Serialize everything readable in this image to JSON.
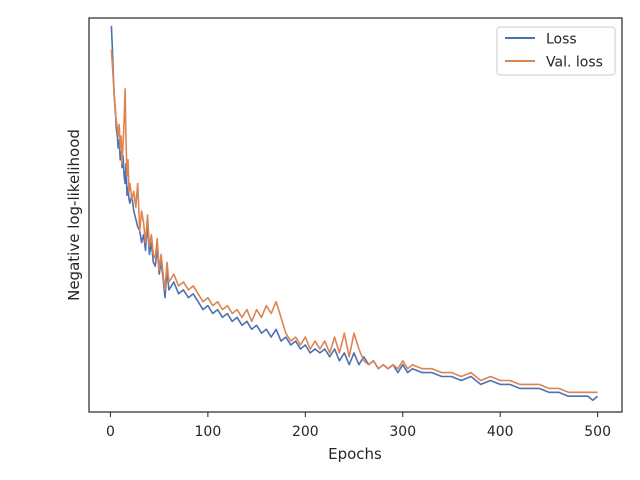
{
  "chart_data": {
    "type": "line",
    "title": "",
    "xlabel": "Epochs",
    "ylabel": "Negative log-likelihood",
    "xlim": [
      -22,
      525
    ],
    "ylim": [
      0.0,
      1.0
    ],
    "xticks": [
      0,
      100,
      200,
      300,
      400,
      500
    ],
    "yticks": [],
    "grid": false,
    "legend": {
      "position": "top-right"
    },
    "series": [
      {
        "name": "Loss",
        "color": "#4c72b0",
        "points": [
          [
            1,
            0.98
          ],
          [
            2,
            0.92
          ],
          [
            3,
            0.85
          ],
          [
            4,
            0.8
          ],
          [
            5,
            0.77
          ],
          [
            6,
            0.72
          ],
          [
            7,
            0.7
          ],
          [
            8,
            0.67
          ],
          [
            9,
            0.69
          ],
          [
            10,
            0.64
          ],
          [
            11,
            0.66
          ],
          [
            12,
            0.62
          ],
          [
            13,
            0.65
          ],
          [
            14,
            0.6
          ],
          [
            15,
            0.58
          ],
          [
            16,
            0.63
          ],
          [
            17,
            0.55
          ],
          [
            18,
            0.57
          ],
          [
            19,
            0.54
          ],
          [
            20,
            0.53
          ],
          [
            22,
            0.55
          ],
          [
            24,
            0.51
          ],
          [
            26,
            0.49
          ],
          [
            28,
            0.47
          ],
          [
            30,
            0.46
          ],
          [
            32,
            0.43
          ],
          [
            34,
            0.45
          ],
          [
            36,
            0.41
          ],
          [
            38,
            0.48
          ],
          [
            40,
            0.4
          ],
          [
            42,
            0.43
          ],
          [
            44,
            0.38
          ],
          [
            46,
            0.37
          ],
          [
            48,
            0.42
          ],
          [
            50,
            0.35
          ],
          [
            52,
            0.38
          ],
          [
            54,
            0.34
          ],
          [
            56,
            0.29
          ],
          [
            58,
            0.36
          ],
          [
            60,
            0.31
          ],
          [
            65,
            0.33
          ],
          [
            70,
            0.3
          ],
          [
            75,
            0.31
          ],
          [
            80,
            0.29
          ],
          [
            85,
            0.3
          ],
          [
            90,
            0.28
          ],
          [
            95,
            0.26
          ],
          [
            100,
            0.27
          ],
          [
            105,
            0.25
          ],
          [
            110,
            0.26
          ],
          [
            115,
            0.24
          ],
          [
            120,
            0.25
          ],
          [
            125,
            0.23
          ],
          [
            130,
            0.24
          ],
          [
            135,
            0.22
          ],
          [
            140,
            0.23
          ],
          [
            145,
            0.21
          ],
          [
            150,
            0.22
          ],
          [
            155,
            0.2
          ],
          [
            160,
            0.21
          ],
          [
            165,
            0.19
          ],
          [
            170,
            0.21
          ],
          [
            175,
            0.18
          ],
          [
            180,
            0.19
          ],
          [
            185,
            0.17
          ],
          [
            190,
            0.18
          ],
          [
            195,
            0.16
          ],
          [
            200,
            0.17
          ],
          [
            205,
            0.15
          ],
          [
            210,
            0.16
          ],
          [
            215,
            0.15
          ],
          [
            220,
            0.16
          ],
          [
            225,
            0.14
          ],
          [
            230,
            0.16
          ],
          [
            235,
            0.13
          ],
          [
            240,
            0.15
          ],
          [
            245,
            0.12
          ],
          [
            250,
            0.15
          ],
          [
            255,
            0.12
          ],
          [
            260,
            0.14
          ],
          [
            265,
            0.12
          ],
          [
            270,
            0.13
          ],
          [
            275,
            0.11
          ],
          [
            280,
            0.12
          ],
          [
            285,
            0.11
          ],
          [
            290,
            0.12
          ],
          [
            295,
            0.1
          ],
          [
            300,
            0.12
          ],
          [
            305,
            0.1
          ],
          [
            310,
            0.11
          ],
          [
            320,
            0.1
          ],
          [
            330,
            0.1
          ],
          [
            340,
            0.09
          ],
          [
            350,
            0.09
          ],
          [
            360,
            0.08
          ],
          [
            370,
            0.09
          ],
          [
            380,
            0.07
          ],
          [
            390,
            0.08
          ],
          [
            400,
            0.07
          ],
          [
            410,
            0.07
          ],
          [
            420,
            0.06
          ],
          [
            430,
            0.06
          ],
          [
            440,
            0.06
          ],
          [
            450,
            0.05
          ],
          [
            460,
            0.05
          ],
          [
            470,
            0.04
          ],
          [
            480,
            0.04
          ],
          [
            490,
            0.04
          ],
          [
            495,
            0.03
          ],
          [
            500,
            0.04
          ]
        ]
      },
      {
        "name": "Val. loss",
        "color": "#dd8452",
        "points": [
          [
            1,
            0.92
          ],
          [
            2,
            0.88
          ],
          [
            3,
            0.84
          ],
          [
            4,
            0.8
          ],
          [
            5,
            0.76
          ],
          [
            6,
            0.74
          ],
          [
            7,
            0.72
          ],
          [
            8,
            0.7
          ],
          [
            9,
            0.73
          ],
          [
            10,
            0.67
          ],
          [
            11,
            0.7
          ],
          [
            12,
            0.63
          ],
          [
            13,
            0.68
          ],
          [
            14,
            0.74
          ],
          [
            15,
            0.82
          ],
          [
            16,
            0.69
          ],
          [
            17,
            0.6
          ],
          [
            18,
            0.64
          ],
          [
            19,
            0.56
          ],
          [
            20,
            0.58
          ],
          [
            22,
            0.54
          ],
          [
            24,
            0.56
          ],
          [
            26,
            0.52
          ],
          [
            28,
            0.58
          ],
          [
            30,
            0.46
          ],
          [
            32,
            0.51
          ],
          [
            34,
            0.48
          ],
          [
            36,
            0.43
          ],
          [
            38,
            0.5
          ],
          [
            40,
            0.42
          ],
          [
            42,
            0.45
          ],
          [
            44,
            0.4
          ],
          [
            46,
            0.39
          ],
          [
            48,
            0.44
          ],
          [
            50,
            0.36
          ],
          [
            52,
            0.4
          ],
          [
            54,
            0.35
          ],
          [
            56,
            0.31
          ],
          [
            58,
            0.38
          ],
          [
            60,
            0.33
          ],
          [
            65,
            0.35
          ],
          [
            70,
            0.32
          ],
          [
            75,
            0.33
          ],
          [
            80,
            0.31
          ],
          [
            85,
            0.32
          ],
          [
            90,
            0.3
          ],
          [
            95,
            0.28
          ],
          [
            100,
            0.29
          ],
          [
            105,
            0.27
          ],
          [
            110,
            0.28
          ],
          [
            115,
            0.26
          ],
          [
            120,
            0.27
          ],
          [
            125,
            0.25
          ],
          [
            130,
            0.26
          ],
          [
            135,
            0.24
          ],
          [
            140,
            0.26
          ],
          [
            145,
            0.23
          ],
          [
            150,
            0.26
          ],
          [
            155,
            0.24
          ],
          [
            160,
            0.27
          ],
          [
            165,
            0.25
          ],
          [
            170,
            0.28
          ],
          [
            175,
            0.24
          ],
          [
            180,
            0.2
          ],
          [
            185,
            0.18
          ],
          [
            190,
            0.19
          ],
          [
            195,
            0.17
          ],
          [
            200,
            0.19
          ],
          [
            205,
            0.16
          ],
          [
            210,
            0.18
          ],
          [
            215,
            0.16
          ],
          [
            220,
            0.18
          ],
          [
            225,
            0.15
          ],
          [
            230,
            0.19
          ],
          [
            235,
            0.15
          ],
          [
            240,
            0.2
          ],
          [
            245,
            0.14
          ],
          [
            250,
            0.2
          ],
          [
            255,
            0.16
          ],
          [
            260,
            0.13
          ],
          [
            265,
            0.12
          ],
          [
            270,
            0.13
          ],
          [
            275,
            0.11
          ],
          [
            280,
            0.12
          ],
          [
            285,
            0.11
          ],
          [
            290,
            0.12
          ],
          [
            295,
            0.11
          ],
          [
            300,
            0.13
          ],
          [
            305,
            0.11
          ],
          [
            310,
            0.12
          ],
          [
            320,
            0.11
          ],
          [
            330,
            0.11
          ],
          [
            340,
            0.1
          ],
          [
            350,
            0.1
          ],
          [
            360,
            0.09
          ],
          [
            370,
            0.1
          ],
          [
            380,
            0.08
          ],
          [
            390,
            0.09
          ],
          [
            400,
            0.08
          ],
          [
            410,
            0.08
          ],
          [
            420,
            0.07
          ],
          [
            430,
            0.07
          ],
          [
            440,
            0.07
          ],
          [
            450,
            0.06
          ],
          [
            460,
            0.06
          ],
          [
            470,
            0.05
          ],
          [
            480,
            0.05
          ],
          [
            490,
            0.05
          ],
          [
            495,
            0.05
          ],
          [
            500,
            0.05
          ]
        ]
      }
    ]
  }
}
